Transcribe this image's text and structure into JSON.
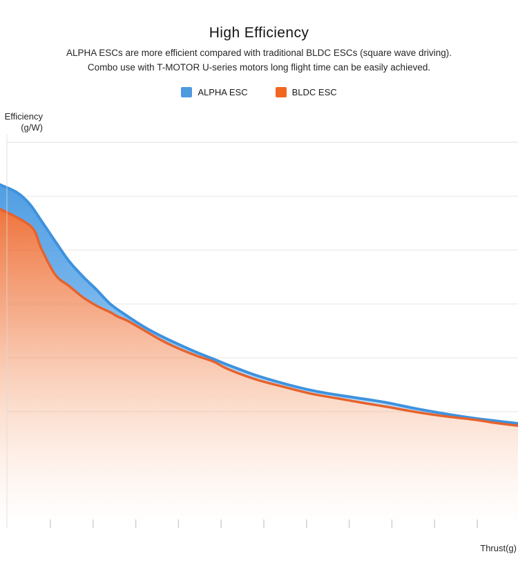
{
  "title": "High Efficiency",
  "subtitle": {
    "line1": "ALPHA ESCs are more efficient compared with traditional BLDC ESCs (square wave driving).",
    "line2": "Combo use with T-MOTOR U-series motors long flight time can be easily achieved."
  },
  "legend": [
    {
      "label": "ALPHA ESC",
      "color": "#4D9ADF"
    },
    {
      "label": "BLDC ESC",
      "color": "#F2661F"
    }
  ],
  "axes": {
    "y_label_line1": "Efficiency",
    "y_label_line2": "(g/W)",
    "x_label": "Thrust(g)"
  },
  "chart_data": {
    "type": "area",
    "title": "High Efficiency",
    "xlabel": "Thrust(g)",
    "ylabel": "Efficiency (g/W)",
    "legend_position": "top",
    "grid": "horizontal",
    "h_gridlines_visible": 6,
    "x_ticks_count": 11,
    "axis_tick_labels_visible": false,
    "scale_note": "No numeric tick labels are shown in the figure; x = relative thrust (0-100 across axis), y = relative efficiency (0-100 of plot height), estimated from pixel positions.",
    "series": [
      {
        "name": "ALPHA ESC",
        "line_color": "#3E92DE",
        "fill_color": "#4D9ADF",
        "points": [
          [
            0,
            88.8
          ],
          [
            3.3,
            86.7
          ],
          [
            5.7,
            83.7
          ],
          [
            8,
            79.2
          ],
          [
            10.7,
            73.7
          ],
          [
            13.3,
            68.6
          ],
          [
            16,
            64.5
          ],
          [
            18.7,
            60.9
          ],
          [
            21.3,
            57.2
          ],
          [
            24.7,
            53.9
          ],
          [
            28,
            51.0
          ],
          [
            31.3,
            48.6
          ],
          [
            34.7,
            46.4
          ],
          [
            38,
            44.4
          ],
          [
            41.3,
            42.6
          ],
          [
            44,
            41.1
          ],
          [
            49.3,
            38.4
          ],
          [
            54.7,
            36.2
          ],
          [
            60,
            34.4
          ],
          [
            65.3,
            33.1
          ],
          [
            70.7,
            32.0
          ],
          [
            74.7,
            31.1
          ],
          [
            80,
            29.6
          ],
          [
            85.3,
            28.3
          ],
          [
            92,
            26.9
          ],
          [
            100,
            25.6
          ]
        ]
      },
      {
        "name": "BLDC ESC",
        "line_color": "#E7622B",
        "fill_color": "#F2661F",
        "points": [
          [
            0,
            82.3
          ],
          [
            3.3,
            80.1
          ],
          [
            6.4,
            77.1
          ],
          [
            8,
            71.8
          ],
          [
            10.7,
            64.9
          ],
          [
            13.3,
            62.0
          ],
          [
            16,
            59.0
          ],
          [
            18.7,
            56.7
          ],
          [
            21.3,
            55.0
          ],
          [
            22.7,
            53.9
          ],
          [
            24.7,
            52.7
          ],
          [
            28,
            50.1
          ],
          [
            31.3,
            47.5
          ],
          [
            34.7,
            45.3
          ],
          [
            38,
            43.5
          ],
          [
            41.3,
            41.9
          ],
          [
            44,
            40.0
          ],
          [
            49.3,
            37.3
          ],
          [
            54.7,
            35.3
          ],
          [
            60,
            33.5
          ],
          [
            65.3,
            32.2
          ],
          [
            70.7,
            30.9
          ],
          [
            74.7,
            30.0
          ],
          [
            80,
            28.7
          ],
          [
            85.3,
            27.6
          ],
          [
            92,
            26.5
          ],
          [
            95.3,
            25.8
          ],
          [
            100,
            25.0
          ]
        ]
      }
    ]
  },
  "colors": {
    "grid": "#E6E6E6",
    "axis_line": "#DCDCDC",
    "tick": "#CFCFCF"
  }
}
